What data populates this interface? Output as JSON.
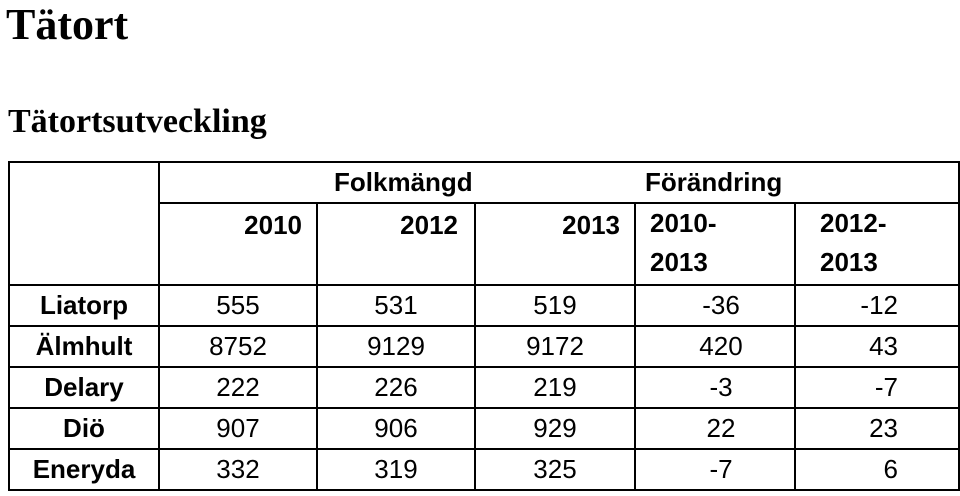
{
  "page": {
    "title": "Tätort",
    "subtitle": "Tätortsutveckling"
  },
  "table": {
    "group_headers": {
      "population": "Folkmängd",
      "change": "Förändring"
    },
    "year_headers": [
      "2010",
      "2012",
      "2013",
      "2010-\n2013",
      "2012-\n2013"
    ],
    "rows": [
      {
        "name": "Liatorp",
        "values": [
          "555",
          "531",
          "519",
          "-36",
          "-12"
        ]
      },
      {
        "name": "Älmhult",
        "values": [
          "8752",
          "9129",
          "9172",
          "420",
          "43"
        ]
      },
      {
        "name": "Delary",
        "values": [
          "222",
          "226",
          "219",
          "-3",
          "-7"
        ]
      },
      {
        "name": "Diö",
        "values": [
          "907",
          "906",
          "929",
          "22",
          "23"
        ]
      },
      {
        "name": "Eneryda",
        "values": [
          "332",
          "319",
          "325",
          "-7",
          "6"
        ]
      }
    ]
  }
}
